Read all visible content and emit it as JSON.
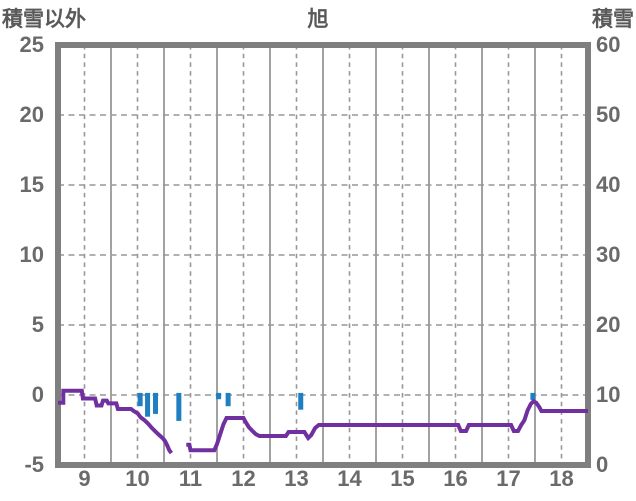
{
  "header": {
    "left_axis_title": "積雪以外",
    "station_title": "旭",
    "right_axis_title": "積雪"
  },
  "colors": {
    "line": "#7030a0",
    "bar": "#1f7fc0",
    "border": "#7f7f7f",
    "grid_solid": "#8a8a8a",
    "grid_dashed": "#979797",
    "tick_text": "#6a6a6a",
    "title_text": "#595959",
    "background": "#ffffff"
  },
  "chart_data": {
    "type": "line+bar",
    "title": "旭",
    "x_axis": {
      "ticks": [
        9,
        10,
        11,
        12,
        13,
        14,
        15,
        16,
        17,
        18
      ],
      "range": [
        8.5,
        18.5
      ],
      "solid_gridlines_at": [
        9.5,
        10.5,
        11.5,
        12.5,
        13.5,
        14.5,
        15.5,
        16.5,
        17.5
      ],
      "dashed_gridlines_at": [
        9,
        10,
        11,
        12,
        13,
        14,
        15,
        16,
        17,
        18
      ]
    },
    "left_axis": {
      "title": "積雪以外",
      "ticks": [
        25,
        20,
        15,
        10,
        5,
        0,
        -5
      ],
      "range": [
        -5,
        25
      ],
      "dashed_gridlines_at": [
        20,
        15,
        10,
        5,
        0
      ]
    },
    "right_axis": {
      "title": "積雪",
      "ticks": [
        60,
        50,
        40,
        30,
        20,
        10,
        0
      ],
      "range": [
        0,
        60
      ]
    },
    "line_series": {
      "name": "積雪以外",
      "axis": "left",
      "color": "#7030a0",
      "segments": [
        [
          [
            8.5,
            -0.55
          ],
          [
            8.6,
            -0.55
          ],
          [
            8.6,
            0.3
          ],
          [
            8.95,
            0.3
          ],
          [
            8.97,
            -0.25
          ],
          [
            9.2,
            -0.25
          ],
          [
            9.23,
            -0.75
          ],
          [
            9.32,
            -0.75
          ],
          [
            9.35,
            -0.4
          ],
          [
            9.42,
            -0.4
          ],
          [
            9.45,
            -0.6
          ],
          [
            9.6,
            -0.6
          ],
          [
            9.63,
            -1.0
          ],
          [
            9.88,
            -1.0
          ],
          [
            9.93,
            -1.15
          ],
          [
            10.0,
            -1.3
          ],
          [
            10.06,
            -1.6
          ],
          [
            10.13,
            -1.8
          ],
          [
            10.2,
            -2.05
          ],
          [
            10.27,
            -2.35
          ],
          [
            10.35,
            -2.65
          ],
          [
            10.42,
            -2.9
          ],
          [
            10.48,
            -3.1
          ],
          [
            10.52,
            -3.3
          ],
          [
            10.56,
            -3.6
          ],
          [
            10.6,
            -3.95
          ],
          [
            10.64,
            -4.15
          ]
        ],
        [
          [
            10.92,
            -3.55
          ],
          [
            10.98,
            -3.55
          ],
          [
            11.0,
            -3.95
          ],
          [
            11.45,
            -3.95
          ],
          [
            11.5,
            -3.5
          ],
          [
            11.56,
            -2.8
          ],
          [
            11.62,
            -2.1
          ],
          [
            11.68,
            -1.64
          ],
          [
            12.0,
            -1.64
          ],
          [
            12.04,
            -1.93
          ],
          [
            12.1,
            -2.29
          ],
          [
            12.17,
            -2.57
          ],
          [
            12.23,
            -2.79
          ],
          [
            12.3,
            -2.93
          ],
          [
            12.8,
            -2.93
          ],
          [
            12.85,
            -2.64
          ],
          [
            13.15,
            -2.64
          ],
          [
            13.22,
            -3.07
          ],
          [
            13.28,
            -2.86
          ],
          [
            13.35,
            -2.36
          ],
          [
            13.42,
            -2.14
          ],
          [
            16.05,
            -2.14
          ],
          [
            16.1,
            -2.57
          ],
          [
            16.2,
            -2.57
          ],
          [
            16.25,
            -2.14
          ],
          [
            17.05,
            -2.14
          ],
          [
            17.1,
            -2.57
          ],
          [
            17.18,
            -2.57
          ],
          [
            17.24,
            -2.14
          ],
          [
            17.3,
            -1.8
          ],
          [
            17.36,
            -1.1
          ],
          [
            17.42,
            -0.64
          ],
          [
            17.47,
            -0.45
          ],
          [
            17.52,
            -0.55
          ],
          [
            17.58,
            -0.85
          ],
          [
            17.62,
            -1.14
          ],
          [
            18.5,
            -1.14
          ]
        ]
      ]
    },
    "bar_series": {
      "name": "積雪",
      "axis": "right",
      "color": "#1f7fc0",
      "bar_top_value": 10.3,
      "bars": [
        {
          "x": 10.05,
          "value": 8.4
        },
        {
          "x": 10.19,
          "value": 6.9
        },
        {
          "x": 10.34,
          "value": 7.3
        },
        {
          "x": 10.78,
          "value": 6.3
        },
        {
          "x": 11.53,
          "value": 9.4
        },
        {
          "x": 11.71,
          "value": 8.4
        },
        {
          "x": 13.08,
          "value": 7.9
        },
        {
          "x": 17.46,
          "value": 9.3
        }
      ]
    }
  }
}
